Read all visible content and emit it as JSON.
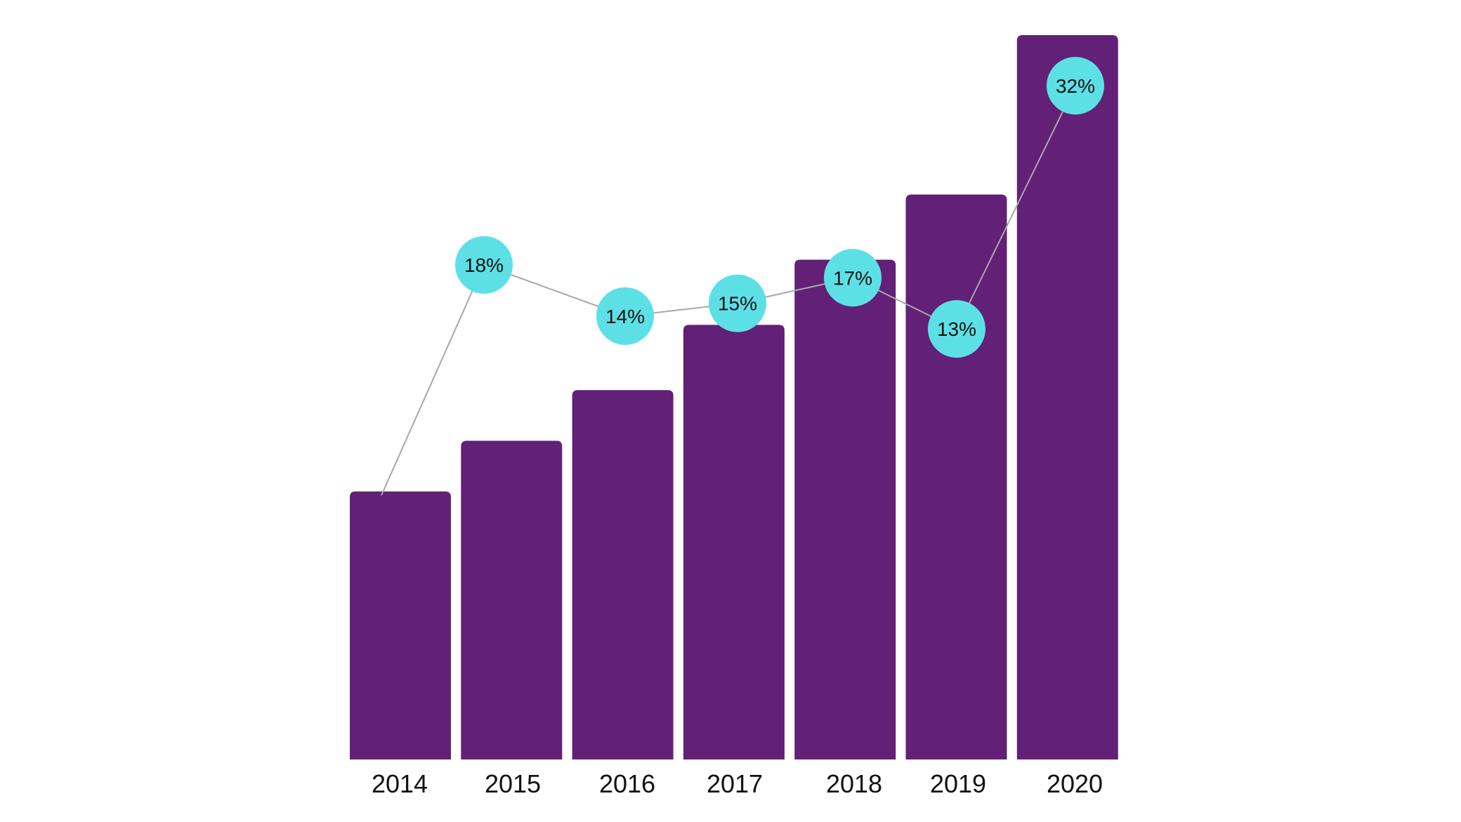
{
  "chart_data": {
    "type": "bar",
    "title": "",
    "xlabel": "",
    "ylabel": "",
    "categories": [
      "2014",
      "2015",
      "2016",
      "2017",
      "2018",
      "2019",
      "2020"
    ],
    "ylim": [
      0,
      100
    ],
    "series": [
      {
        "type": "bar",
        "values": [
          37,
          44,
          51,
          60,
          69,
          78,
          100
        ]
      },
      {
        "type": "line",
        "values": [
          0,
          18,
          14,
          15,
          17,
          13,
          32
        ]
      }
    ],
    "data_labels": [
      "",
      "18%",
      "14%",
      "15%",
      "17%",
      "13%",
      "32%"
    ],
    "grid": false,
    "legend": "none",
    "colors": {
      "bar": "#632077",
      "marker": "#5ce0e6",
      "line": "#a8a8a8",
      "text": "#111111"
    }
  }
}
